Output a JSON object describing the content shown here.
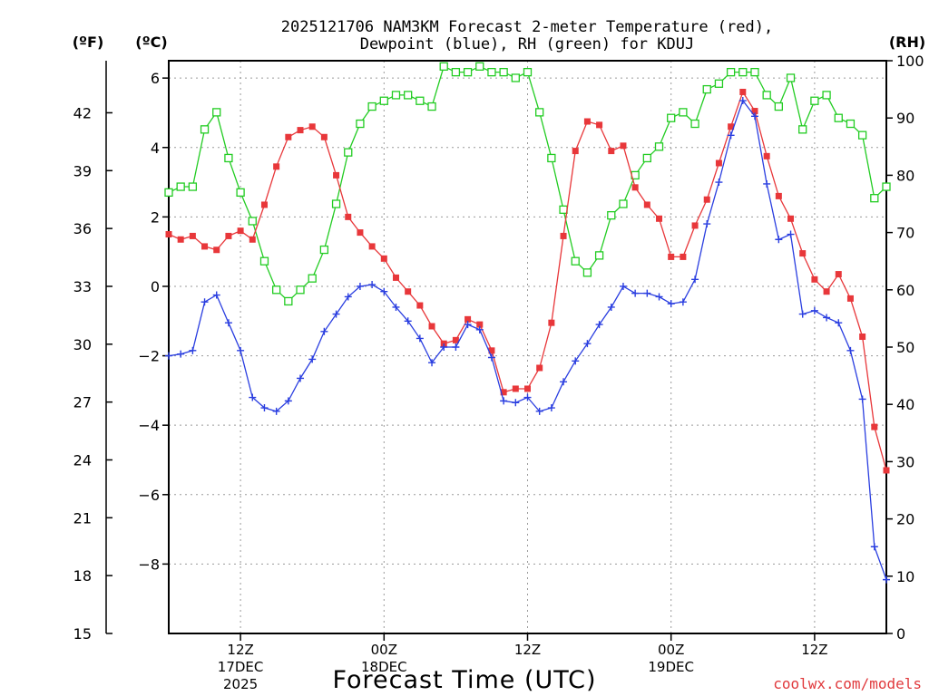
{
  "chart_data": {
    "type": "line",
    "title_line1": "2025121706 NAM3KM Forecast 2-meter Temperature (red),",
    "title_line2": "Dewpoint (blue), RH (green) for KDUJ",
    "xlabel": "Forecast Time (UTC)",
    "credit": "coolwx.com/models",
    "units": {
      "fahrenheit": "(ºF)",
      "celsius": "(ºC)",
      "rh": "(RH)"
    },
    "x_hour_range": [
      0,
      60
    ],
    "celsius_ylim": [
      -10.0,
      6.5
    ],
    "fahrenheit_ylim": [
      15,
      44.7
    ],
    "rh_ylim": [
      0,
      100
    ],
    "fahrenheit_ticks": [
      "15",
      "18",
      "21",
      "24",
      "27",
      "30",
      "33",
      "36",
      "39",
      "42"
    ],
    "celsius_ticks": [
      "6",
      "4",
      "2",
      "0",
      "−2",
      "−4",
      "−6",
      "−8"
    ],
    "rh_ticks": [
      "0",
      "10",
      "20",
      "30",
      "40",
      "50",
      "60",
      "70",
      "80",
      "90",
      "100"
    ],
    "x_ticks": [
      {
        "hour": 6,
        "label": "12Z",
        "sub1": "17DEC",
        "sub2": "2025"
      },
      {
        "hour": 18,
        "label": "00Z",
        "sub1": "18DEC",
        "sub2": ""
      },
      {
        "hour": 30,
        "label": "12Z",
        "sub1": "",
        "sub2": ""
      },
      {
        "hour": 42,
        "label": "00Z",
        "sub1": "19DEC",
        "sub2": ""
      },
      {
        "hour": 54,
        "label": "12Z",
        "sub1": "",
        "sub2": ""
      }
    ],
    "colors": {
      "temperature": "#e8373a",
      "dewpoint": "#2a3ee0",
      "rh": "#22cc22"
    },
    "series": [
      {
        "name": "2-meter Temperature",
        "units": "C",
        "x": [
          0,
          1,
          2,
          3,
          4,
          5,
          6,
          7,
          8,
          9,
          10,
          11,
          12,
          13,
          14,
          15,
          16,
          17,
          18,
          19,
          20,
          21,
          22,
          23,
          24,
          25,
          26,
          27,
          28,
          29,
          30,
          31,
          32,
          33,
          34,
          35,
          36,
          37,
          38,
          39,
          40,
          41,
          42,
          43,
          44,
          45,
          46,
          47,
          48,
          49,
          50,
          51,
          52,
          53,
          54,
          55,
          56,
          57,
          58,
          59,
          60
        ],
        "values": [
          1.5,
          1.35,
          1.45,
          1.15,
          1.05,
          1.45,
          1.6,
          1.35,
          2.35,
          3.45,
          4.3,
          4.5,
          4.6,
          4.3,
          3.2,
          2.0,
          1.55,
          1.15,
          0.8,
          0.25,
          -0.15,
          -0.55,
          -1.15,
          -1.65,
          -1.55,
          -0.95,
          -1.1,
          -1.85,
          -3.05,
          -2.95,
          -2.95,
          -2.35,
          -1.05,
          1.45,
          3.9,
          4.75,
          4.65,
          3.9,
          4.05,
          2.85,
          2.35,
          1.95,
          0.85,
          0.85,
          1.75,
          2.5,
          3.55,
          4.6,
          5.6,
          5.05,
          3.75,
          2.6,
          1.95,
          0.95,
          0.2,
          -0.15,
          0.35,
          -0.35,
          -1.45,
          -4.05,
          -5.3
        ]
      },
      {
        "name": "Dewpoint",
        "units": "C",
        "x": [
          0,
          1,
          2,
          3,
          4,
          5,
          6,
          7,
          8,
          9,
          10,
          11,
          12,
          13,
          14,
          15,
          16,
          17,
          18,
          19,
          20,
          21,
          22,
          23,
          24,
          25,
          26,
          27,
          28,
          29,
          30,
          31,
          32,
          33,
          34,
          35,
          36,
          37,
          38,
          39,
          40,
          41,
          42,
          43,
          44,
          45,
          46,
          47,
          48,
          49,
          50,
          51,
          52,
          53,
          54,
          55,
          56,
          57,
          58,
          59,
          60
        ],
        "values": [
          -2.0,
          -1.95,
          -1.85,
          -0.45,
          -0.25,
          -1.05,
          -1.85,
          -3.2,
          -3.5,
          -3.6,
          -3.3,
          -2.65,
          -2.1,
          -1.3,
          -0.8,
          -0.3,
          0.0,
          0.05,
          -0.15,
          -0.6,
          -1.0,
          -1.5,
          -2.2,
          -1.75,
          -1.75,
          -1.1,
          -1.25,
          -2.05,
          -3.3,
          -3.35,
          -3.2,
          -3.6,
          -3.5,
          -2.75,
          -2.15,
          -1.65,
          -1.1,
          -0.6,
          0.0,
          -0.2,
          -0.2,
          -0.3,
          -0.5,
          -0.45,
          0.2,
          1.8,
          3.0,
          4.35,
          5.35,
          4.9,
          2.95,
          1.35,
          1.5,
          -0.8,
          -0.7,
          -0.9,
          -1.05,
          -1.85,
          -3.25,
          -7.5,
          -8.45
        ]
      },
      {
        "name": "RH",
        "units": "%",
        "x": [
          0,
          1,
          2,
          3,
          4,
          5,
          6,
          7,
          8,
          9,
          10,
          11,
          12,
          13,
          14,
          15,
          16,
          17,
          18,
          19,
          20,
          21,
          22,
          23,
          24,
          25,
          26,
          27,
          28,
          29,
          30,
          31,
          32,
          33,
          34,
          35,
          36,
          37,
          38,
          39,
          40,
          41,
          42,
          43,
          44,
          45,
          46,
          47,
          48,
          49,
          50,
          51,
          52,
          53,
          54,
          55,
          56,
          57,
          58,
          59,
          60
        ],
        "values": [
          77,
          78,
          78,
          88,
          91,
          83,
          77,
          72,
          65,
          60,
          58,
          60,
          62,
          67,
          75,
          84,
          89,
          92,
          93,
          94,
          94,
          93,
          92,
          99,
          98,
          98,
          99,
          98,
          98,
          97,
          98,
          91,
          83,
          74,
          65,
          63,
          66,
          73,
          75,
          80,
          83,
          85,
          90,
          91,
          89,
          95,
          96,
          98,
          98,
          98,
          94,
          92,
          97,
          88,
          93,
          94,
          90,
          89,
          87,
          76,
          78
        ]
      }
    ]
  }
}
